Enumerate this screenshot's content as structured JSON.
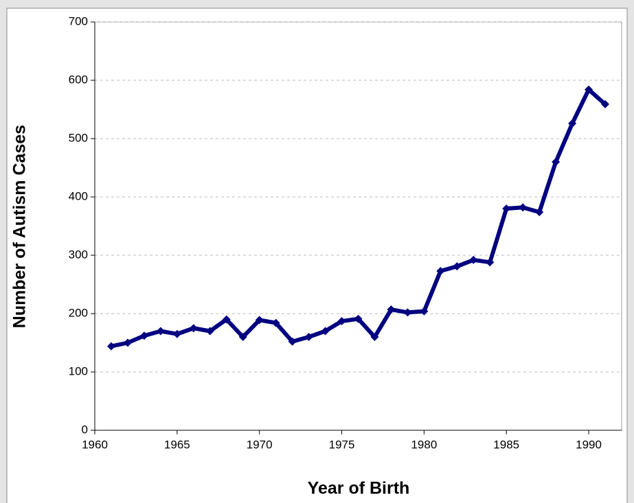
{
  "chart_data": {
    "type": "line",
    "x_label": "Year of Birth",
    "y_label": "Number of Autism Cases",
    "x": [
      1961,
      1962,
      1963,
      1964,
      1965,
      1966,
      1967,
      1968,
      1969,
      1970,
      1971,
      1972,
      1973,
      1974,
      1975,
      1976,
      1977,
      1978,
      1979,
      1980,
      1981,
      1982,
      1983,
      1984,
      1985,
      1986,
      1987,
      1988,
      1989,
      1990,
      1991
    ],
    "series": [
      {
        "name": "Autism cases",
        "color": "#000080",
        "values": [
          144,
          150,
          162,
          170,
          165,
          175,
          170,
          190,
          160,
          189,
          184,
          152,
          160,
          170,
          187,
          191,
          160,
          207,
          202,
          204,
          273,
          281,
          292,
          288,
          380,
          382,
          374,
          460,
          526,
          584,
          559
        ]
      }
    ],
    "xlim": [
      1960,
      1992
    ],
    "xticks": [
      1960,
      1965,
      1970,
      1975,
      1980,
      1985,
      1990
    ],
    "ylim": [
      0,
      700
    ],
    "yticks": [
      0,
      100,
      200,
      300,
      400,
      500,
      600,
      700
    ],
    "grid": true
  }
}
